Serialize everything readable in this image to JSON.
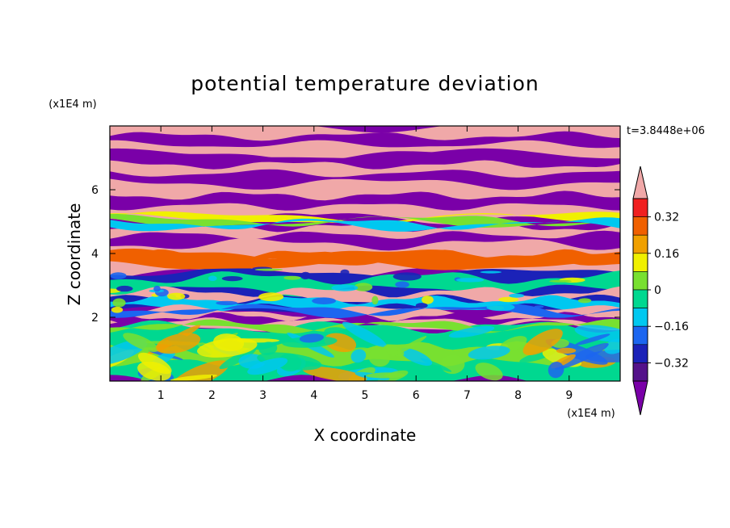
{
  "chart_data": {
    "type": "heatmap",
    "title": "potential temperature deviation",
    "xlabel": "X coordinate",
    "ylabel": "Z coordinate",
    "x_unit": "(x1E4 m)",
    "y_unit": "(x1E4 m)",
    "time_label": "t=3.8448e+06",
    "xlim": [
      0,
      10
    ],
    "ylim": [
      0,
      8
    ],
    "x_ticks": [
      "1",
      "2",
      "3",
      "4",
      "5",
      "6",
      "7",
      "8",
      "9"
    ],
    "y_ticks": [
      "2",
      "4",
      "6"
    ],
    "colorbar": {
      "levels": [
        -0.4,
        -0.32,
        -0.24,
        -0.16,
        -0.08,
        0,
        0.08,
        0.16,
        0.24,
        0.32,
        0.4
      ],
      "tick_labels": [
        "0.32",
        "0.16",
        "0",
        "−0.16",
        "−0.32"
      ],
      "colors": {
        "below": "#7A00A8",
        "b1": "#54128A",
        "b2": "#1B22B8",
        "b3": "#1C66F0",
        "b4": "#00C8F0",
        "b5": "#00D890",
        "b6": "#78E030",
        "b7": "#F0F000",
        "b8": "#F0A000",
        "b9": "#F06000",
        "b10": "#F02020",
        "above": "#F0A8A8"
      }
    },
    "field_layers": [
      {
        "z_range": [
          7.1,
          8.0
        ],
        "dominant": "above",
        "secondary": "below"
      },
      {
        "z_range": [
          6.2,
          7.1
        ],
        "dominant": "below",
        "secondary": "above"
      },
      {
        "z_range": [
          5.1,
          6.2
        ],
        "dominant": "above",
        "secondary": "below"
      },
      {
        "z_range": [
          4.3,
          5.1
        ],
        "dominant": "below",
        "secondary": "above"
      },
      {
        "z_range": [
          3.4,
          4.3
        ],
        "dominant": "above",
        "secondary": "b9"
      },
      {
        "z_range": [
          2.2,
          3.4
        ],
        "dominant": "mixed",
        "secondary": "b2"
      },
      {
        "z_range": [
          1.7,
          2.2
        ],
        "dominant": "above",
        "secondary": "below"
      },
      {
        "z_range": [
          0.0,
          1.7
        ],
        "dominant": "b5",
        "secondary": "b6"
      }
    ]
  }
}
